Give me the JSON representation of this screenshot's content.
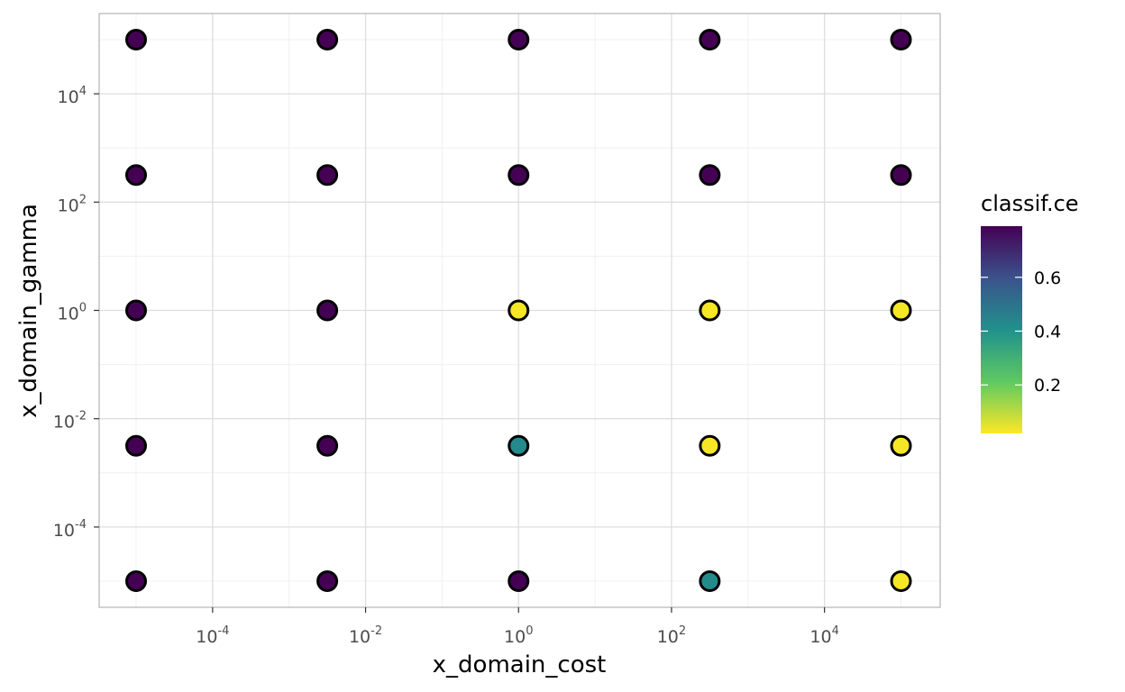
{
  "chart_data": {
    "type": "scatter",
    "title": "",
    "xlabel": "x_domain_cost",
    "ylabel": "x_domain_gamma",
    "x_scale": "log10",
    "y_scale": "log10",
    "xlim": [
      1e-05,
      100000.0
    ],
    "ylim": [
      1e-05,
      100000.0
    ],
    "x_ticks": [
      {
        "base": "10",
        "exp": "-4",
        "value": 0.0001
      },
      {
        "base": "10",
        "exp": "-2",
        "value": 0.01
      },
      {
        "base": "10",
        "exp": "0",
        "value": 1
      },
      {
        "base": "10",
        "exp": "2",
        "value": 100
      },
      {
        "base": "10",
        "exp": "4",
        "value": 10000
      }
    ],
    "y_ticks": [
      {
        "base": "10",
        "exp": "-4",
        "value": 0.0001
      },
      {
        "base": "10",
        "exp": "-2",
        "value": 0.01
      },
      {
        "base": "10",
        "exp": "0",
        "value": 1
      },
      {
        "base": "10",
        "exp": "2",
        "value": 100
      },
      {
        "base": "10",
        "exp": "4",
        "value": 10000
      }
    ],
    "grid": true,
    "color_scale": {
      "name": "viridis",
      "title": "classif.ce",
      "min": 0.02,
      "max": 0.79,
      "ticks": [
        {
          "value": 0.2,
          "label": "0.2"
        },
        {
          "value": 0.4,
          "label": "0.4"
        },
        {
          "value": 0.6,
          "label": "0.6"
        }
      ],
      "legend_position": "right"
    },
    "points": [
      {
        "x": 1e-05,
        "y": 100000,
        "value": 0.79
      },
      {
        "x": 0.00316,
        "y": 100000,
        "value": 0.79
      },
      {
        "x": 1,
        "y": 100000,
        "value": 0.79
      },
      {
        "x": 316,
        "y": 100000,
        "value": 0.79
      },
      {
        "x": 100000,
        "y": 100000,
        "value": 0.79
      },
      {
        "x": 1e-05,
        "y": 316,
        "value": 0.79
      },
      {
        "x": 0.00316,
        "y": 316,
        "value": 0.79
      },
      {
        "x": 1,
        "y": 316,
        "value": 0.79
      },
      {
        "x": 316,
        "y": 316,
        "value": 0.79
      },
      {
        "x": 100000,
        "y": 316,
        "value": 0.79
      },
      {
        "x": 1e-05,
        "y": 1,
        "value": 0.79
      },
      {
        "x": 0.00316,
        "y": 1,
        "value": 0.79
      },
      {
        "x": 1,
        "y": 1,
        "value": 0.03
      },
      {
        "x": 316,
        "y": 1,
        "value": 0.03
      },
      {
        "x": 100000,
        "y": 1,
        "value": 0.03
      },
      {
        "x": 1e-05,
        "y": 0.00316,
        "value": 0.79
      },
      {
        "x": 0.00316,
        "y": 0.00316,
        "value": 0.79
      },
      {
        "x": 1,
        "y": 0.00316,
        "value": 0.42
      },
      {
        "x": 316,
        "y": 0.00316,
        "value": 0.03
      },
      {
        "x": 100000,
        "y": 0.00316,
        "value": 0.03
      },
      {
        "x": 1e-05,
        "y": 1e-05,
        "value": 0.79
      },
      {
        "x": 0.00316,
        "y": 1e-05,
        "value": 0.79
      },
      {
        "x": 1,
        "y": 1e-05,
        "value": 0.79
      },
      {
        "x": 316,
        "y": 1e-05,
        "value": 0.42
      },
      {
        "x": 100000,
        "y": 1e-05,
        "value": 0.03
      }
    ]
  }
}
